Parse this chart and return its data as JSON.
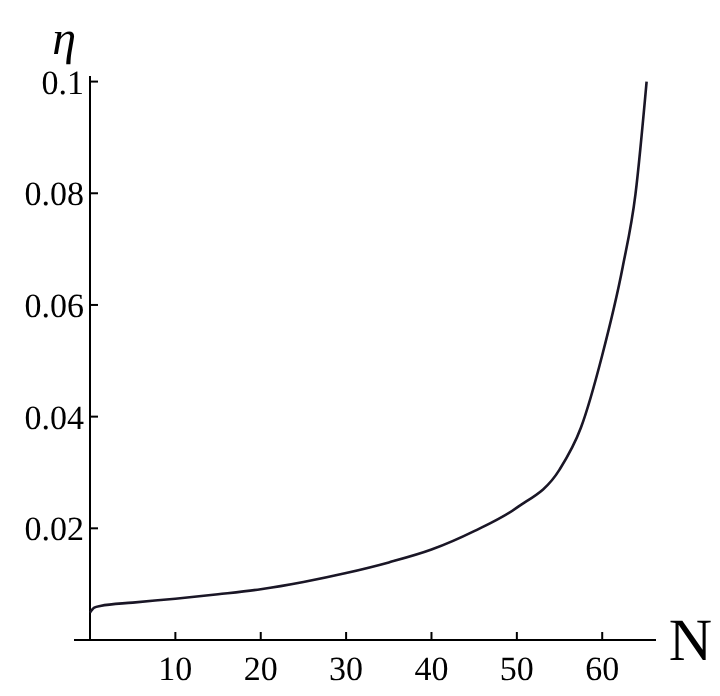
{
  "chart_data": {
    "type": "line",
    "xlabel": "N",
    "ylabel": "η",
    "x": [
      0,
      0.5,
      1.2,
      5,
      10,
      15,
      20,
      25,
      30,
      35,
      40,
      45,
      50,
      55,
      57.5,
      60,
      62.4,
      63.9,
      65.2
    ],
    "series": [
      {
        "color": "#1a1626",
        "values": [
          0.0049,
          0.0058,
          0.0061,
          0.0067,
          0.0074,
          0.0082,
          0.0091,
          0.0104,
          0.012,
          0.0139,
          0.0162,
          0.0195,
          0.0237,
          0.0305,
          0.038,
          0.051,
          0.0668,
          0.0799,
          0.1
        ]
      }
    ],
    "xlim": [
      0,
      66.3
    ],
    "ylim": [
      0,
      0.101
    ],
    "xticks": [
      {
        "value": 0,
        "label": null
      },
      10,
      20,
      30,
      40,
      50,
      60
    ],
    "yticks": [
      0.02,
      0.04,
      0.06,
      0.08,
      0.1
    ],
    "marker": "none",
    "line_style": "solid",
    "grid": false
  }
}
